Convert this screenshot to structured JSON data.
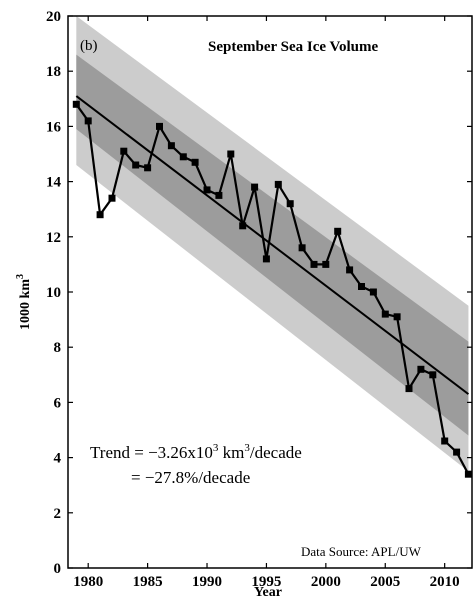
{
  "chart_data": {
    "type": "line",
    "panel_label": "(b)",
    "title": "September Sea Ice Volume",
    "xlabel": "Year",
    "ylabel_base": "1000 km",
    "ylabel_sup": "3",
    "xlim": [
      1978.3,
      2012.3
    ],
    "ylim": [
      0,
      20
    ],
    "xticks": [
      1980,
      1985,
      1990,
      1995,
      2000,
      2005,
      2010
    ],
    "yticks": [
      0,
      2,
      4,
      6,
      8,
      10,
      12,
      14,
      16,
      18,
      20
    ],
    "grid": false,
    "series": [
      {
        "x": [
          1979,
          1980,
          1981,
          1982,
          1983,
          1984,
          1985,
          1986,
          1987,
          1988,
          1989,
          1990,
          1991,
          1992,
          1993,
          1994,
          1995,
          1996,
          1997,
          1998,
          1999,
          2000,
          2001,
          2002,
          2003,
          2004,
          2005,
          2006,
          2007,
          2008,
          2009,
          2010,
          2011,
          2012
        ],
        "values": [
          16.8,
          16.2,
          12.8,
          13.4,
          15.1,
          14.6,
          14.5,
          16.0,
          15.3,
          14.9,
          14.7,
          13.7,
          13.5,
          15.0,
          12.4,
          13.8,
          11.2,
          13.9,
          13.2,
          11.6,
          11.0,
          11.0,
          12.2,
          10.8,
          10.2,
          10.0,
          9.2,
          9.1,
          6.5,
          7.2,
          7.0,
          4.6,
          4.2,
          3.4
        ]
      }
    ],
    "trend_line": {
      "x": [
        1979,
        2012
      ],
      "y": [
        17.1,
        6.3
      ]
    },
    "bands": [
      {
        "level": "outer",
        "color": "#cccccc",
        "upper": [
          20.0,
          9.5
        ],
        "lower": [
          14.6,
          3.5
        ]
      },
      {
        "level": "inner",
        "color": "#9c9c9c",
        "upper": [
          18.6,
          8.2
        ],
        "lower": [
          15.9,
          4.8
        ]
      }
    ],
    "annotations": {
      "trend_line1": "Trend = −3.26x10",
      "trend_sup": "3",
      "trend_line1_tail": " km",
      "trend_sup2": "3",
      "trend_line1_end": "/decade",
      "trend_line2": "= −27.8%/decade",
      "source": "Data Source: APL/UW"
    },
    "colors": {
      "line": "#000000",
      "marker": "#000000"
    }
  }
}
